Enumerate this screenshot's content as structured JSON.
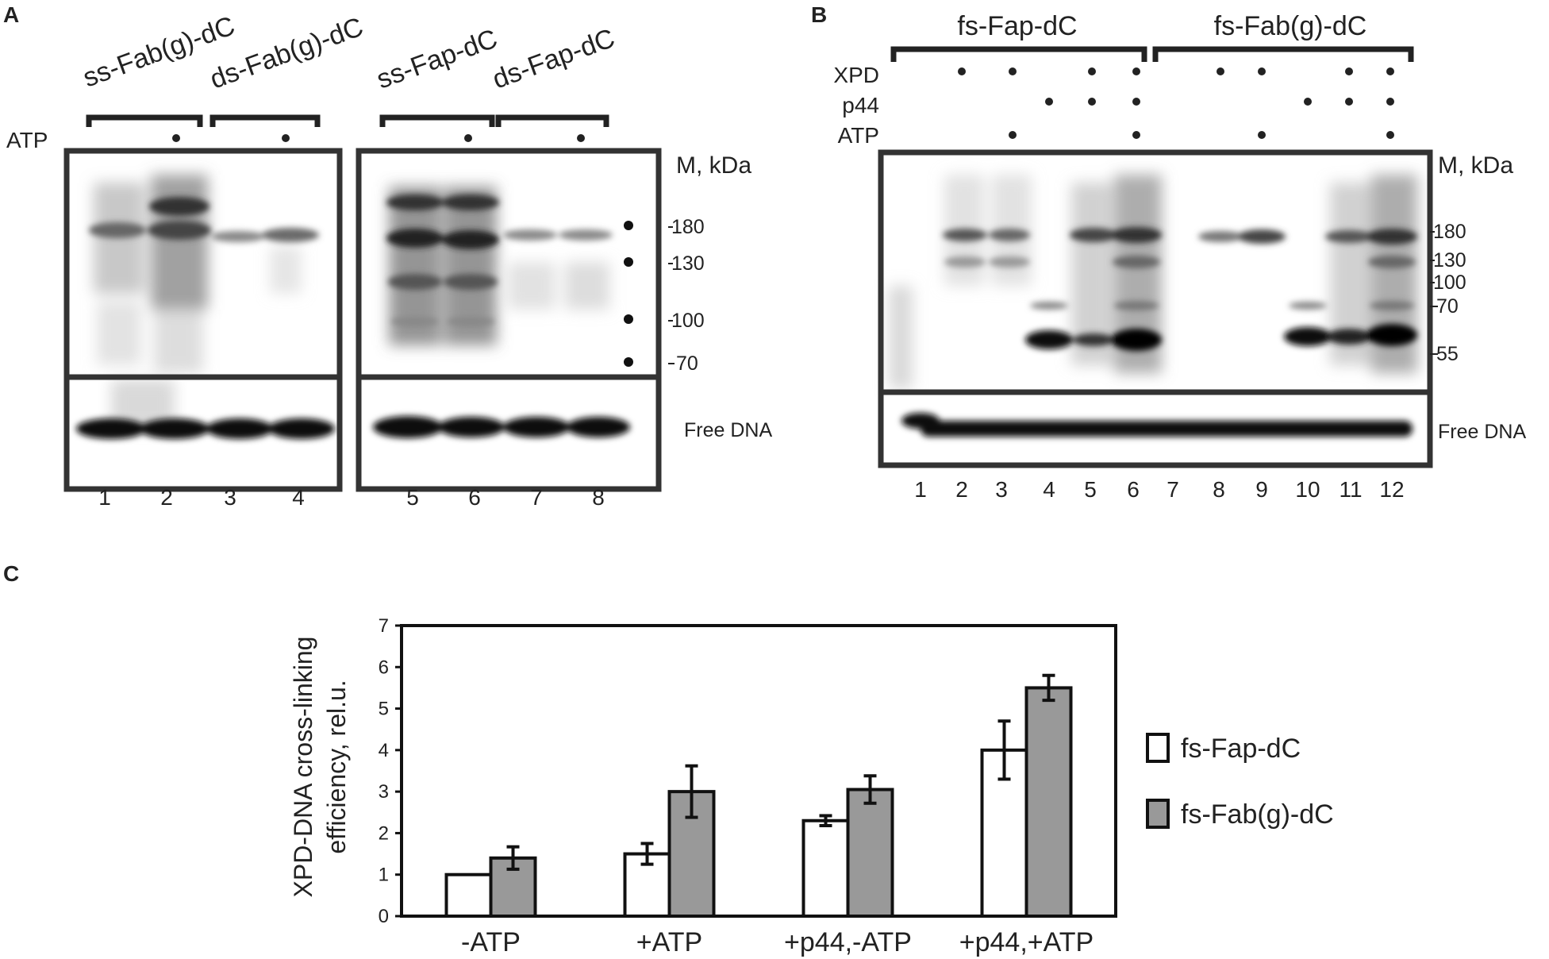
{
  "panel_a": {
    "letter": "A",
    "group_labels": [
      "ss-Fab(g)-dC",
      "ds-Fab(g)-dC",
      "ss-Fap-dC",
      "ds-Fap-dC"
    ],
    "atp_label": "ATP",
    "mw_title": "M, kDa",
    "markers": [
      "180",
      "130",
      "100",
      "70"
    ],
    "free_dna": "Free DNA",
    "lanes_left": [
      "1",
      "2",
      "3",
      "4"
    ],
    "lanes_right": [
      "5",
      "6",
      "7",
      "8"
    ]
  },
  "panel_b": {
    "letter": "B",
    "group_labels": [
      "fs-Fap-dC",
      "fs-Fab(g)-dC"
    ],
    "row_labels": [
      "XPD",
      "p44",
      "ATP"
    ],
    "mw_title": "M, kDa",
    "markers": [
      "180",
      "130",
      "100",
      "70",
      "55"
    ],
    "free_dna": "Free DNA",
    "lanes": [
      "1",
      "2",
      "3",
      "4",
      "5",
      "6",
      "7",
      "8",
      "9",
      "10",
      "11",
      "12"
    ]
  },
  "panel_c": {
    "letter": "C",
    "chart_data": {
      "type": "bar",
      "categories": [
        "-ATP",
        "+ATP",
        "+p44,-ATP",
        "+p44,+ATP"
      ],
      "series": [
        {
          "name": "fs-Fap-dC",
          "color": "#ffffff",
          "values": [
            1.0,
            1.5,
            2.3,
            4.0
          ],
          "errors": [
            0.0,
            0.25,
            0.12,
            0.7
          ]
        },
        {
          "name": "fs-Fab(g)-dC",
          "color": "#999999",
          "values": [
            1.4,
            3.0,
            3.05,
            5.5
          ],
          "errors": [
            0.27,
            0.62,
            0.33,
            0.3
          ]
        }
      ],
      "ylabel_line1": "XPD-DNA cross-linking",
      "ylabel_line2": "efficiency, rel.u.",
      "ylim": [
        0,
        7
      ],
      "yticks": [
        "0",
        "1",
        "2",
        "3",
        "4",
        "5",
        "6",
        "7"
      ],
      "legend_position": "right"
    }
  }
}
